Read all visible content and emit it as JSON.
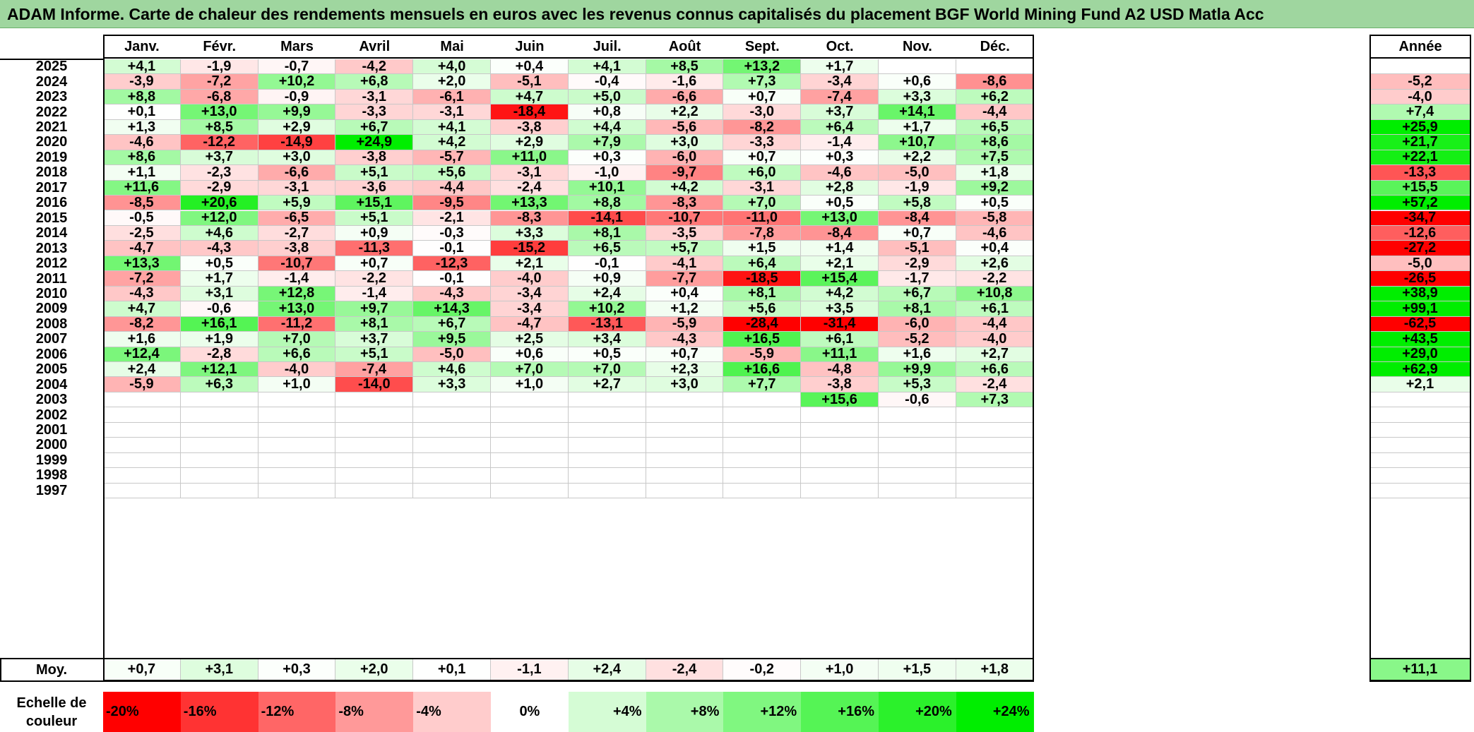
{
  "title": "ADAM Informe. Carte de chaleur des rendements mensuels en euros avec les revenus connus capitalisés du placement BGF World Mining Fund A2 USD Matla Acc",
  "chart_data": {
    "type": "heatmap",
    "title": "ADAM Informe. Carte de chaleur des rendements mensuels en euros avec les revenus connus capitalisés du placement BGF World Mining Fund A2 USD Matla Acc",
    "columns": [
      "Janv.",
      "Févr.",
      "Mars",
      "Avril",
      "Mai",
      "Juin",
      "Juil.",
      "Août",
      "Sept.",
      "Oct.",
      "Nov.",
      "Déc."
    ],
    "year_column_label": "Année",
    "rows": [
      {
        "year": "2025",
        "values": [
          "+4,1",
          "-1,9",
          "-0,7",
          "-4,2",
          "+4,0",
          "+0,4",
          "+4,1",
          "+8,5",
          "+13,2",
          "+1,7",
          "",
          ""
        ],
        "annual": ""
      },
      {
        "year": "2024",
        "values": [
          "-3,9",
          "-7,2",
          "+10,2",
          "+6,8",
          "+2,0",
          "-5,1",
          "-0,4",
          "-1,6",
          "+7,3",
          "-3,4",
          "+0,6",
          "-8,6"
        ],
        "annual": "-5,2"
      },
      {
        "year": "2023",
        "values": [
          "+8,8",
          "-6,8",
          "-0,9",
          "-3,1",
          "-6,1",
          "+4,7",
          "+5,0",
          "-6,6",
          "+0,7",
          "-7,4",
          "+3,3",
          "+6,2"
        ],
        "annual": "-4,0"
      },
      {
        "year": "2022",
        "values": [
          "+0,1",
          "+13,0",
          "+9,9",
          "-3,3",
          "-3,1",
          "-18,4",
          "+0,8",
          "+2,2",
          "-3,0",
          "+3,7",
          "+14,1",
          "-4,4"
        ],
        "annual": "+7,4"
      },
      {
        "year": "2021",
        "values": [
          "+1,3",
          "+8,5",
          "+2,9",
          "+6,7",
          "+4,1",
          "-3,8",
          "+4,4",
          "-5,6",
          "-8,2",
          "+6,4",
          "+1,7",
          "+6,5"
        ],
        "annual": "+25,9"
      },
      {
        "year": "2020",
        "values": [
          "-4,6",
          "-12,2",
          "-14,9",
          "+24,9",
          "+4,2",
          "+2,9",
          "+7,9",
          "+3,0",
          "-3,3",
          "-1,4",
          "+10,7",
          "+8,6"
        ],
        "annual": "+21,7"
      },
      {
        "year": "2019",
        "values": [
          "+8,6",
          "+3,7",
          "+3,0",
          "-3,8",
          "-5,7",
          "+11,0",
          "+0,3",
          "-6,0",
          "+0,7",
          "+0,3",
          "+2,2",
          "+7,5"
        ],
        "annual": "+22,1"
      },
      {
        "year": "2018",
        "values": [
          "+1,1",
          "-2,3",
          "-6,6",
          "+5,1",
          "+5,6",
          "-3,1",
          "-1,0",
          "-9,7",
          "+6,0",
          "-4,6",
          "-5,0",
          "+1,8"
        ],
        "annual": "-13,3"
      },
      {
        "year": "2017",
        "values": [
          "+11,6",
          "-2,9",
          "-3,1",
          "-3,6",
          "-4,4",
          "-2,4",
          "+10,1",
          "+4,2",
          "-3,1",
          "+2,8",
          "-1,9",
          "+9,2"
        ],
        "annual": "+15,5"
      },
      {
        "year": "2016",
        "values": [
          "-8,5",
          "+20,6",
          "+5,9",
          "+15,1",
          "-9,5",
          "+13,3",
          "+8,8",
          "-8,3",
          "+7,0",
          "+0,5",
          "+5,8",
          "+0,5"
        ],
        "annual": "+57,2"
      },
      {
        "year": "2015",
        "values": [
          "-0,5",
          "+12,0",
          "-6,5",
          "+5,1",
          "-2,1",
          "-8,3",
          "-14,1",
          "-10,7",
          "-11,0",
          "+13,0",
          "-8,4",
          "-5,8"
        ],
        "annual": "-34,7"
      },
      {
        "year": "2014",
        "values": [
          "-2,5",
          "+4,6",
          "-2,7",
          "+0,9",
          "-0,3",
          "+3,3",
          "+8,1",
          "-3,5",
          "-7,8",
          "-8,4",
          "+0,7",
          "-4,6"
        ],
        "annual": "-12,6"
      },
      {
        "year": "2013",
        "values": [
          "-4,7",
          "-4,3",
          "-3,8",
          "-11,3",
          "-0,1",
          "-15,2",
          "+6,5",
          "+5,7",
          "+1,5",
          "+1,4",
          "-5,1",
          "+0,4"
        ],
        "annual": "-27,2"
      },
      {
        "year": "2012",
        "values": [
          "+13,3",
          "+0,5",
          "-10,7",
          "+0,7",
          "-12,3",
          "+2,1",
          "-0,1",
          "-4,1",
          "+6,4",
          "+2,1",
          "-2,9",
          "+2,6"
        ],
        "annual": "-5,0"
      },
      {
        "year": "2011",
        "values": [
          "-7,2",
          "+1,7",
          "-1,4",
          "-2,2",
          "-0,1",
          "-4,0",
          "+0,9",
          "-7,7",
          "-18,5",
          "+15,4",
          "-1,7",
          "-2,2"
        ],
        "annual": "-26,5"
      },
      {
        "year": "2010",
        "values": [
          "-4,3",
          "+3,1",
          "+12,8",
          "-1,4",
          "-4,3",
          "-3,4",
          "+2,4",
          "+0,4",
          "+8,1",
          "+4,2",
          "+6,7",
          "+10,8"
        ],
        "annual": "+38,9"
      },
      {
        "year": "2009",
        "values": [
          "+4,7",
          "-0,6",
          "+13,0",
          "+9,7",
          "+14,3",
          "-3,4",
          "+10,2",
          "+1,2",
          "+5,6",
          "+3,5",
          "+8,1",
          "+6,1"
        ],
        "annual": "+99,1"
      },
      {
        "year": "2008",
        "values": [
          "-8,2",
          "+16,1",
          "-11,2",
          "+8,1",
          "+6,7",
          "-4,7",
          "-13,1",
          "-5,9",
          "-28,4",
          "-31,4",
          "-6,0",
          "-4,4"
        ],
        "annual": "-62,5"
      },
      {
        "year": "2007",
        "values": [
          "+1,6",
          "+1,9",
          "+7,0",
          "+3,7",
          "+9,5",
          "+2,5",
          "+3,4",
          "-4,3",
          "+16,5",
          "+6,1",
          "-5,2",
          "-4,0"
        ],
        "annual": "+43,5"
      },
      {
        "year": "2006",
        "values": [
          "+12,4",
          "-2,8",
          "+6,6",
          "+5,1",
          "-5,0",
          "+0,6",
          "+0,5",
          "+0,7",
          "-5,9",
          "+11,1",
          "+1,6",
          "+2,7"
        ],
        "annual": "+29,0"
      },
      {
        "year": "2005",
        "values": [
          "+2,4",
          "+12,1",
          "-4,0",
          "-7,4",
          "+4,6",
          "+7,0",
          "+7,0",
          "+2,3",
          "+16,6",
          "-4,8",
          "+9,9",
          "+6,6"
        ],
        "annual": "+62,9"
      },
      {
        "year": "2004",
        "values": [
          "-5,9",
          "+6,3",
          "+1,0",
          "-14,0",
          "+3,3",
          "+1,0",
          "+2,7",
          "+3,0",
          "+7,7",
          "-3,8",
          "+5,3",
          "-2,4"
        ],
        "annual": "+2,1"
      },
      {
        "year": "2003",
        "values": [
          "",
          "",
          "",
          "",
          "",
          "",
          "",
          "",
          "",
          "+15,6",
          "-0,6",
          "+7,3"
        ],
        "annual": ""
      },
      {
        "year": "2002",
        "values": [
          "",
          "",
          "",
          "",
          "",
          "",
          "",
          "",
          "",
          "",
          "",
          ""
        ],
        "annual": ""
      },
      {
        "year": "2001",
        "values": [
          "",
          "",
          "",
          "",
          "",
          "",
          "",
          "",
          "",
          "",
          "",
          ""
        ],
        "annual": ""
      },
      {
        "year": "2000",
        "values": [
          "",
          "",
          "",
          "",
          "",
          "",
          "",
          "",
          "",
          "",
          "",
          ""
        ],
        "annual": ""
      },
      {
        "year": "1999",
        "values": [
          "",
          "",
          "",
          "",
          "",
          "",
          "",
          "",
          "",
          "",
          "",
          ""
        ],
        "annual": ""
      },
      {
        "year": "1998",
        "values": [
          "",
          "",
          "",
          "",
          "",
          "",
          "",
          "",
          "",
          "",
          "",
          ""
        ],
        "annual": ""
      },
      {
        "year": "1997",
        "values": [
          "",
          "",
          "",
          "",
          "",
          "",
          "",
          "",
          "",
          "",
          "",
          ""
        ],
        "annual": ""
      }
    ],
    "average": {
      "label": "Moy.",
      "values": [
        "+0,7",
        "+3,1",
        "+0,3",
        "+2,0",
        "+0,1",
        "-1,1",
        "+2,4",
        "-2,4",
        "-0,2",
        "+1,0",
        "+1,5",
        "+1,8"
      ],
      "annual": "+11,1"
    },
    "color_scale": {
      "label_line1": "Echelle de",
      "label_line2": "couleur",
      "stops": [
        "-20%",
        "-16%",
        "-12%",
        "-8%",
        "-4%",
        "0%",
        "+4%",
        "+8%",
        "+12%",
        "+16%",
        "+20%",
        "+24%"
      ],
      "stop_values": [
        -20,
        -16,
        -12,
        -8,
        -4,
        0,
        4,
        8,
        12,
        16,
        20,
        24
      ],
      "negative_color": "#ff0000",
      "neutral_color": "#ffffff",
      "positive_color": "#00ee00"
    }
  }
}
